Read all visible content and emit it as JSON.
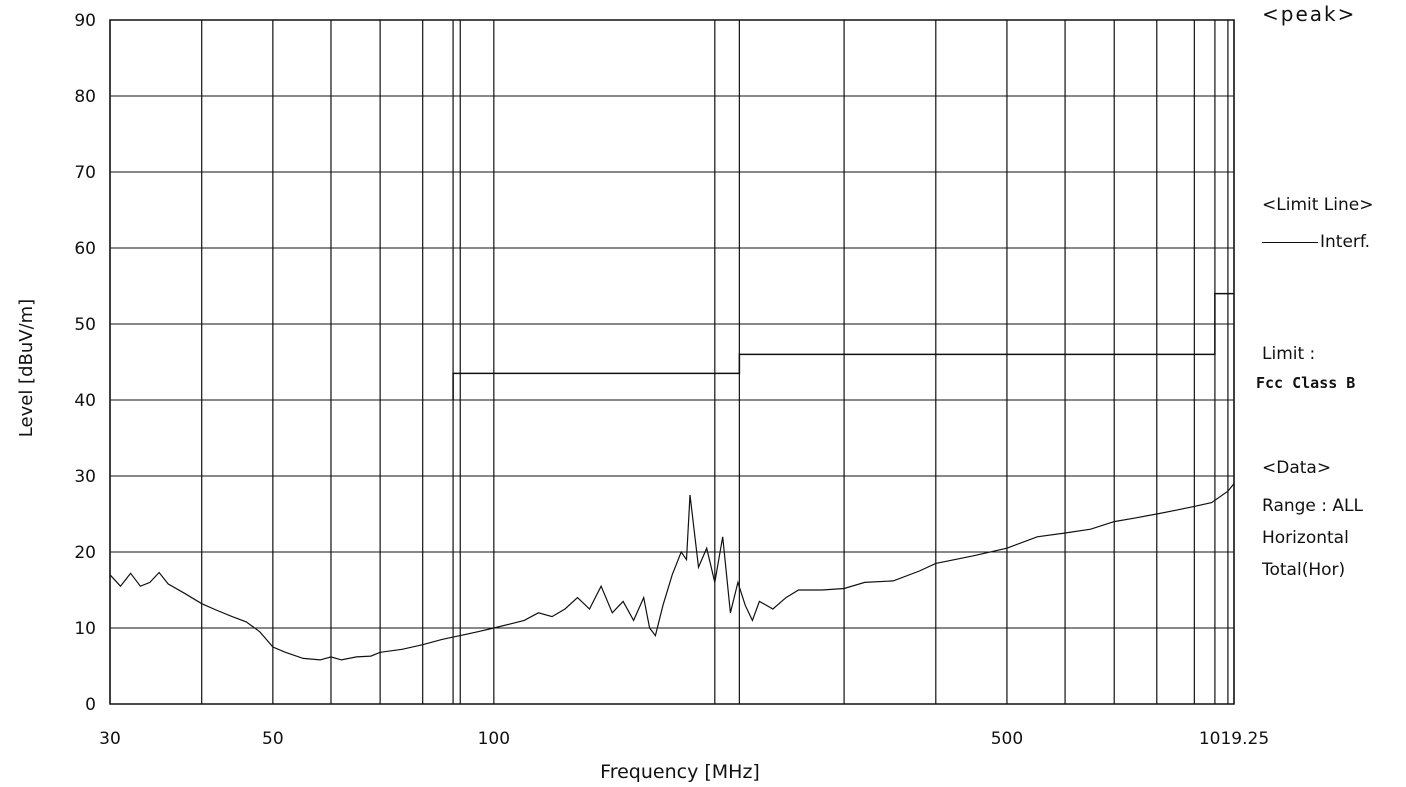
{
  "chart_data": {
    "type": "line",
    "xlabel": "Frequency [MHz]",
    "ylabel": "Level [dBuV/m]",
    "x_scale": "log",
    "xlim": [
      30,
      1019.25
    ],
    "ylim": [
      0,
      90
    ],
    "x_tick_labels": [
      "30",
      "50",
      "100",
      "500",
      "1019.25"
    ],
    "x_tick_values": [
      30,
      50,
      100,
      500,
      1019.25
    ],
    "x_grid_values": [
      30,
      40,
      50,
      60,
      70,
      80,
      88,
      90,
      100,
      200,
      216,
      300,
      400,
      500,
      600,
      700,
      800,
      900,
      960,
      1000,
      1019.25
    ],
    "y_ticks": [
      0,
      10,
      20,
      30,
      40,
      50,
      60,
      70,
      80,
      90
    ],
    "grid": true,
    "colors": {
      "line": "#111111",
      "grid": "#111111",
      "background": "#ffffff"
    },
    "series": [
      {
        "name": "Interf.",
        "kind": "limit",
        "x": [
          88,
          88,
          216,
          216,
          960,
          960,
          1019.25
        ],
        "y": [
          40,
          43.5,
          43.5,
          46,
          46,
          54,
          54
        ]
      },
      {
        "kind": "data",
        "x": [
          30,
          31,
          32,
          33,
          34,
          35,
          36,
          38,
          40,
          42,
          44,
          46,
          48,
          50,
          52,
          55,
          58,
          60,
          62,
          65,
          68,
          70,
          75,
          80,
          85,
          90,
          95,
          100,
          105,
          110,
          115,
          120,
          125,
          130,
          135,
          140,
          145,
          150,
          155,
          160,
          163,
          166,
          170,
          175,
          180,
          183,
          185,
          190,
          195,
          200,
          205,
          210,
          215,
          220,
          225,
          230,
          240,
          250,
          260,
          280,
          300,
          320,
          350,
          380,
          400,
          450,
          500,
          550,
          600,
          650,
          700,
          750,
          800,
          850,
          900,
          950,
          1000,
          1019.25
        ],
        "y": [
          17,
          15.5,
          17.2,
          15.5,
          16,
          17.3,
          15.8,
          14.5,
          13.2,
          12.3,
          11.5,
          10.8,
          9.5,
          7.5,
          6.8,
          6,
          5.8,
          6.2,
          5.8,
          6.2,
          6.3,
          6.8,
          7.2,
          7.8,
          8.5,
          9,
          9.5,
          10,
          10.5,
          11,
          12,
          11.5,
          12.5,
          14,
          12.5,
          15.5,
          12,
          13.5,
          11,
          14,
          10,
          9,
          13,
          17,
          20,
          19,
          27.5,
          18,
          20.5,
          16,
          22,
          12,
          16,
          13,
          11,
          13.5,
          12.5,
          14,
          15,
          15,
          15.2,
          16,
          16.2,
          17.5,
          18.5,
          19.5,
          20.5,
          22,
          22.5,
          23,
          24,
          24.5,
          25,
          25.5,
          26,
          26.5,
          28,
          29
        ]
      }
    ]
  },
  "legend": {
    "mode": "<peak>",
    "limit_line_header": "<Limit Line>",
    "interf_label": "Interf.",
    "limit_label": "Limit :",
    "limit_value": "Fcc Class B",
    "data_header": "<Data>",
    "range_label": "Range : ALL",
    "polarization": "Horizontal",
    "total_label": "Total(Hor)"
  }
}
